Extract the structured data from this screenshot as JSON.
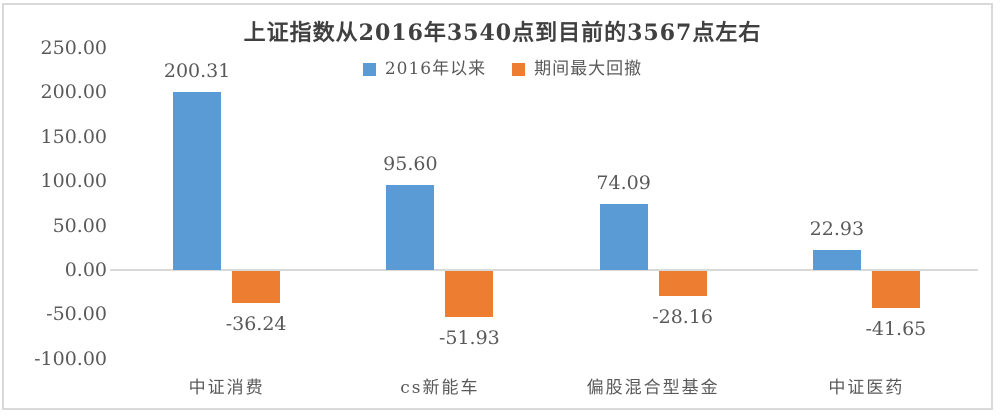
{
  "chart_data": {
    "type": "bar",
    "title": "上证指数从2016年3540点到目前的3567点左右",
    "categories": [
      "中证消费",
      "cs新能车",
      "偏股混合型基金",
      "中证医药"
    ],
    "series": [
      {
        "name": "2016年以来",
        "color": "#5B9BD5",
        "values": [
          200.31,
          95.6,
          74.09,
          22.93
        ],
        "labels": [
          "200.31",
          "95.60",
          "74.09",
          "22.93"
        ]
      },
      {
        "name": "期间最大回撤",
        "color": "#ED7D31",
        "values": [
          -36.24,
          -51.93,
          -28.16,
          -41.65
        ],
        "labels": [
          "-36.24",
          "-51.93",
          "-28.16",
          "-41.65"
        ]
      }
    ],
    "y_axis": {
      "min": -100,
      "max": 250,
      "ticks": [
        250,
        200,
        150,
        100,
        50,
        0,
        -50,
        -100
      ],
      "tick_labels": [
        "250.00",
        "200.00",
        "150.00",
        "100.00",
        "50.00",
        "0.00",
        "-50.00",
        "-100.00"
      ]
    },
    "legend_position": "top",
    "grid": false
  },
  "style": {
    "series_colors": [
      "#5B9BD5",
      "#ED7D31"
    ],
    "axis_line_color": "#D9D9D9",
    "frame_border_color": "#D9D9D9",
    "title_color": "#404040",
    "label_color": "#595959",
    "background_color": "#FFFFFF"
  }
}
